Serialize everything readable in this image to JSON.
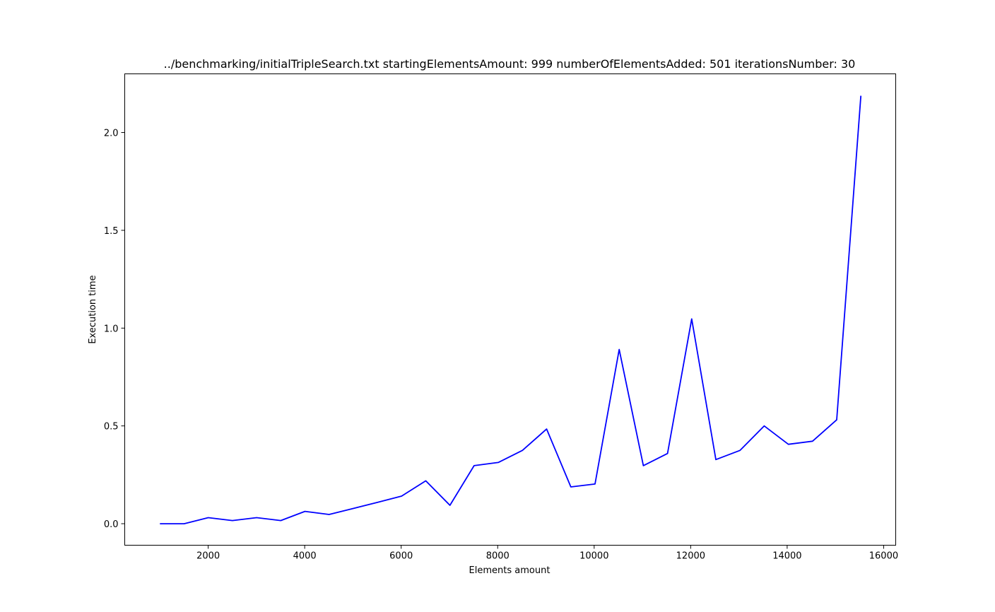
{
  "chart_data": {
    "type": "line",
    "title": "../benchmarking/initialTripleSearch.txt startingElementsAmount: 999 numberOfElementsAdded: 501 iterationsNumber: 30",
    "xlabel": "Elements amount",
    "ylabel": "Execution time",
    "xlim": [
      270,
      16250
    ],
    "ylim": [
      -0.11,
      2.3
    ],
    "xticks": [
      2000,
      4000,
      6000,
      8000,
      10000,
      12000,
      14000,
      16000
    ],
    "xtick_labels": [
      "2000",
      "4000",
      "6000",
      "8000",
      "10000",
      "12000",
      "14000",
      "16000"
    ],
    "yticks": [
      0.0,
      0.5,
      1.0,
      1.5,
      2.0
    ],
    "ytick_labels": [
      "0.0",
      "0.5",
      "1.0",
      "1.5",
      "2.0"
    ],
    "grid": false,
    "line_color": "#0000ff",
    "series": [
      {
        "x": [
          999,
          1500,
          2001,
          2502,
          3003,
          3504,
          4005,
          4506,
          5007,
          5508,
          6009,
          6510,
          7011,
          7512,
          8013,
          8514,
          9015,
          9516,
          10017,
          10518,
          11019,
          11520,
          12021,
          12522,
          13023,
          13524,
          14025,
          14526,
          15027,
          15528
        ],
        "y": [
          0.0,
          0.0,
          0.031,
          0.016,
          0.031,
          0.016,
          0.063,
          0.047,
          0.078,
          0.109,
          0.141,
          0.219,
          0.094,
          0.297,
          0.313,
          0.375,
          0.484,
          0.188,
          0.203,
          0.891,
          0.297,
          0.359,
          1.047,
          0.328,
          0.375,
          0.5,
          0.406,
          0.422,
          0.531,
          2.188
        ]
      }
    ]
  }
}
